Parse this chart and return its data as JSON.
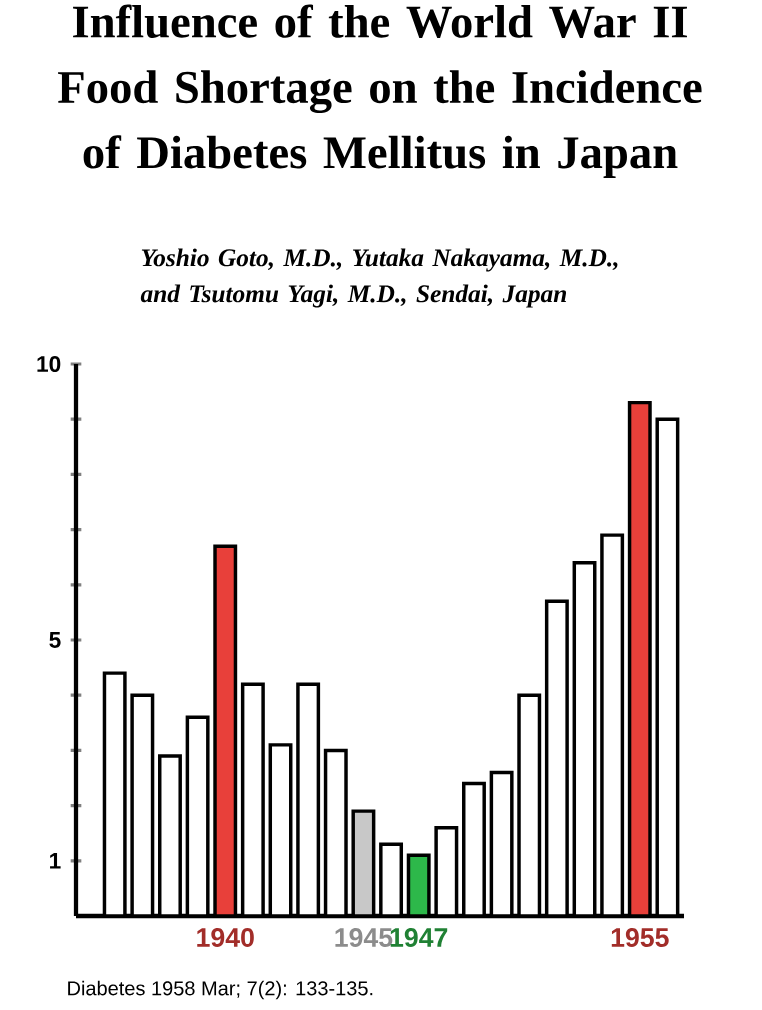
{
  "chart_data": {
    "type": "bar",
    "title": "Influence of the World War II Food Shortage on the Incidence of Diabetes Mellitus in Japan",
    "subtitle": "Yoshio Goto, M.D., Yutaka Nakayama, M.D., and Tsutomu Yagi, M.D., Sendai, Japan",
    "annotations": [
      "Diabetes 1958 Mar; 7(2): 133-135."
    ],
    "categories": [
      null,
      null,
      null,
      null,
      "1940",
      null,
      null,
      null,
      null,
      "1945",
      null,
      "1947",
      null,
      null,
      null,
      null,
      null,
      null,
      null,
      "1955",
      null
    ],
    "values": [
      4.4,
      4.0,
      2.9,
      3.6,
      6.7,
      4.2,
      3.1,
      4.2,
      3.0,
      1.9,
      1.3,
      1.1,
      1.6,
      2.4,
      2.6,
      4.0,
      5.7,
      6.4,
      6.9,
      9.3,
      9.0
    ],
    "colors": [
      "#ffffff",
      "#ffffff",
      "#ffffff",
      "#ffffff",
      "#e8403a",
      "#ffffff",
      "#ffffff",
      "#ffffff",
      "#ffffff",
      "#c8c8c8",
      "#ffffff",
      "#2db84a",
      "#ffffff",
      "#ffffff",
      "#ffffff",
      "#ffffff",
      "#ffffff",
      "#ffffff",
      "#ffffff",
      "#e8403a",
      "#ffffff"
    ],
    "ylim": [
      0,
      10
    ],
    "yticks": [
      1,
      {
        "value": 2,
        "label": null
      },
      {
        "value": 3,
        "label": null
      },
      {
        "value": 4,
        "label": null
      },
      5,
      {
        "value": 6,
        "label": null
      },
      {
        "value": 7,
        "label": null
      },
      {
        "value": 8,
        "label": null
      },
      {
        "value": 9,
        "label": null
      },
      10
    ],
    "grid": false
  }
}
